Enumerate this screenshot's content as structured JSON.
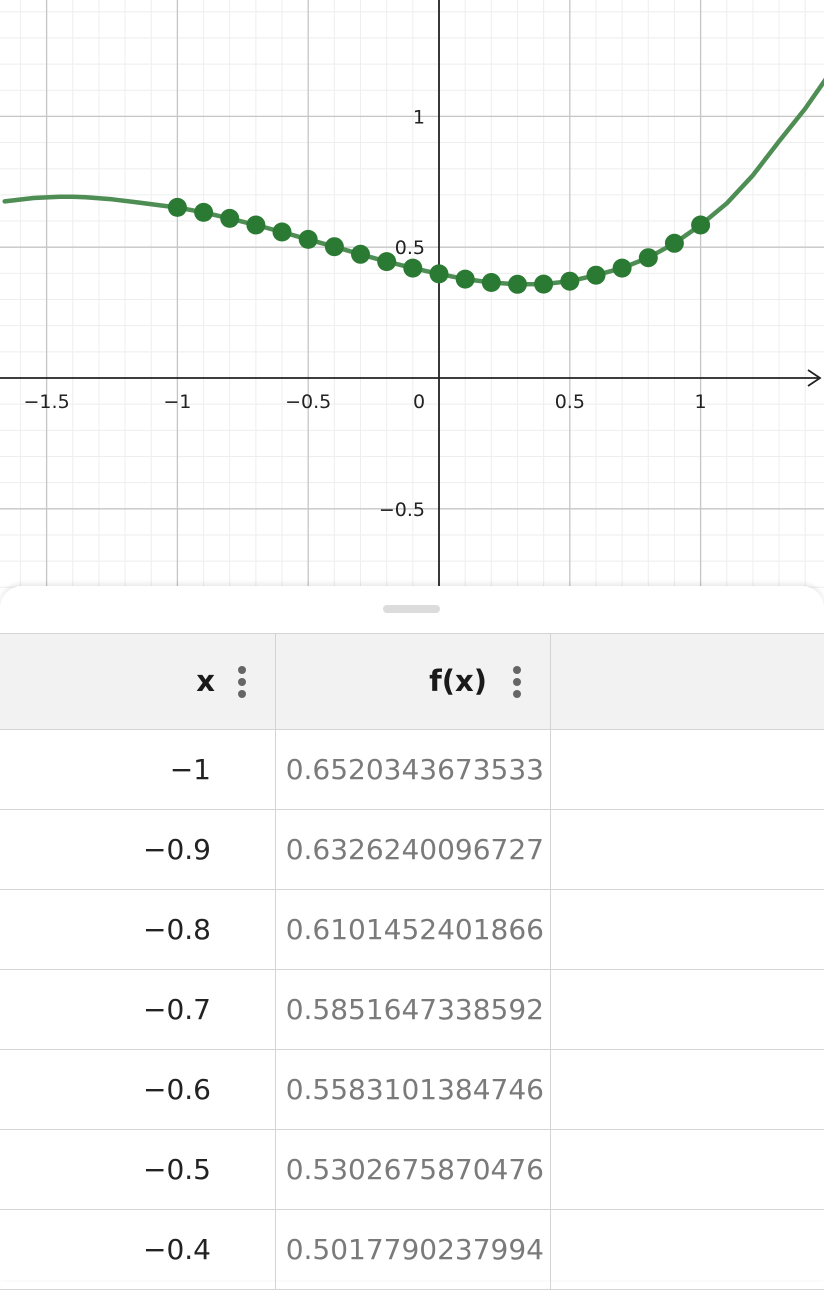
{
  "graph": {
    "x_tick_labels": [
      "−1.5",
      "−1",
      "−0.5",
      "0",
      "0.5",
      "1"
    ],
    "y_tick_labels": [
      "1",
      "0.5",
      "−0.5"
    ],
    "curve_color": "#4e8d53",
    "point_color": "#2b7a34"
  },
  "chart_data": {
    "type": "line",
    "title": "",
    "xlabel": "",
    "ylabel": "",
    "xlim": [
      -1.66,
      1.48
    ],
    "ylim": [
      -0.79,
      1.45
    ],
    "grid": true,
    "x_tick_values": [
      -1.5,
      -1,
      -0.5,
      0,
      0.5,
      1
    ],
    "y_tick_values": [
      1,
      0.5,
      -0.5
    ],
    "series": [
      {
        "x": [
          -1.66,
          -1.55,
          -1.45,
          -1.4,
          -1.35,
          -1.25,
          -1.15,
          -1.05,
          -1.0,
          -0.9,
          -0.8,
          -0.7,
          -0.6,
          -0.5,
          -0.4,
          -0.3,
          -0.2,
          -0.1,
          0.0,
          0.1,
          0.2,
          0.3,
          0.4,
          0.5,
          0.6,
          0.7,
          0.8,
          0.9,
          1.0,
          1.1,
          1.2,
          1.3,
          1.4,
          1.48
        ],
        "y": [
          0.675,
          0.688,
          0.693,
          0.693,
          0.691,
          0.683,
          0.671,
          0.658,
          0.652,
          0.633,
          0.61,
          0.585,
          0.558,
          0.53,
          0.502,
          0.473,
          0.445,
          0.42,
          0.398,
          0.378,
          0.365,
          0.358,
          0.359,
          0.37,
          0.393,
          0.42,
          0.46,
          0.515,
          0.585,
          0.668,
          0.775,
          0.905,
          1.03,
          1.145
        ]
      },
      {
        "x": [
          -1,
          -0.9,
          -0.8,
          -0.7,
          -0.6,
          -0.5,
          -0.4,
          -0.3,
          -0.2,
          -0.1,
          0,
          0.1,
          0.2,
          0.3,
          0.4,
          0.5,
          0.6,
          0.7,
          0.8,
          0.9,
          1
        ],
        "y": [
          0.652,
          0.633,
          0.61,
          0.585,
          0.558,
          0.53,
          0.502,
          0.473,
          0.445,
          0.42,
          0.398,
          0.378,
          0.365,
          0.358,
          0.359,
          0.37,
          0.393,
          0.42,
          0.46,
          0.515,
          0.585
        ]
      }
    ]
  },
  "table": {
    "headers": [
      "x",
      "f(x)"
    ],
    "rows": [
      {
        "x": "−1",
        "fx": "0.6520343673533"
      },
      {
        "x": "−0.9",
        "fx": "0.6326240096727"
      },
      {
        "x": "−0.8",
        "fx": "0.6101452401866"
      },
      {
        "x": "−0.7",
        "fx": "0.5851647338592"
      },
      {
        "x": "−0.6",
        "fx": "0.5583101384746"
      },
      {
        "x": "−0.5",
        "fx": "0.5302675870476"
      },
      {
        "x": "−0.4",
        "fx": "0.5017790237994"
      }
    ]
  }
}
